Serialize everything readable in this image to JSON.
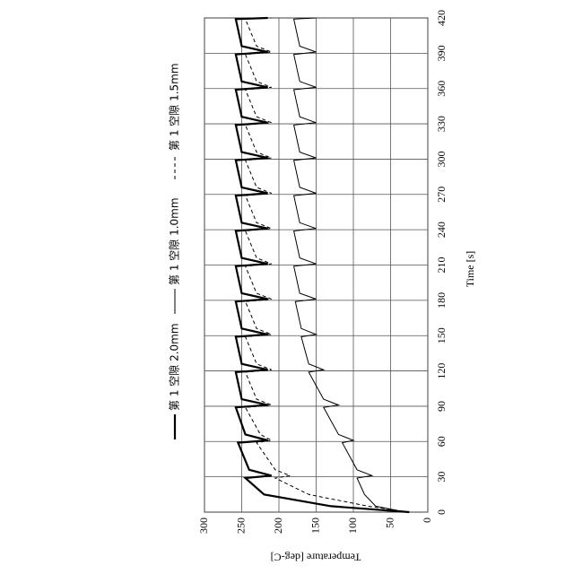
{
  "chart_data": {
    "type": "line",
    "xlabel": "Time [s]",
    "ylabel": "Temperature [deg-C]",
    "xlim": [
      0,
      420
    ],
    "xticks": [
      0,
      30,
      60,
      90,
      120,
      150,
      180,
      210,
      240,
      270,
      300,
      330,
      360,
      390,
      420
    ],
    "ylim": [
      0,
      300
    ],
    "yticks": [
      0,
      50,
      100,
      150,
      200,
      250,
      300
    ],
    "grid": true,
    "x": [
      0,
      5,
      15,
      29,
      31,
      36,
      59,
      61,
      66,
      89,
      91,
      96,
      119,
      121,
      126,
      149,
      151,
      156,
      179,
      181,
      186,
      209,
      211,
      216,
      239,
      241,
      246,
      269,
      271,
      276,
      299,
      301,
      306,
      329,
      331,
      336,
      359,
      361,
      366,
      389,
      391,
      396,
      419,
      420
    ],
    "series": [
      {
        "name": "第 1 空隙 2.0mm",
        "color": "#000000",
        "style": "thick",
        "values": [
          25,
          130,
          220,
          245,
          210,
          240,
          255,
          215,
          245,
          258,
          215,
          250,
          258,
          215,
          250,
          258,
          215,
          250,
          258,
          215,
          250,
          258,
          215,
          250,
          258,
          215,
          250,
          258,
          215,
          250,
          258,
          215,
          250,
          258,
          215,
          250,
          258,
          215,
          250,
          258,
          215,
          250,
          258,
          215
        ]
      },
      {
        "name": "第 1 空隙 1.0mm",
        "color": "#000000",
        "style": "thin",
        "values": [
          30,
          70,
          85,
          95,
          75,
          95,
          115,
          100,
          120,
          140,
          120,
          140,
          160,
          140,
          160,
          170,
          150,
          170,
          178,
          150,
          172,
          180,
          150,
          172,
          180,
          150,
          172,
          180,
          150,
          172,
          180,
          150,
          172,
          180,
          150,
          172,
          180,
          150,
          172,
          180,
          150,
          172,
          180,
          150
        ]
      },
      {
        "name": "第 1 空隙 1.5mm",
        "color": "#000000",
        "style": "dashed",
        "values": [
          25,
          80,
          160,
          205,
          185,
          205,
          230,
          210,
          225,
          245,
          210,
          230,
          245,
          210,
          230,
          245,
          210,
          230,
          245,
          210,
          230,
          245,
          210,
          230,
          245,
          210,
          230,
          245,
          210,
          230,
          245,
          210,
          230,
          245,
          210,
          230,
          245,
          210,
          230,
          245,
          210,
          230,
          245,
          210
        ]
      }
    ]
  }
}
